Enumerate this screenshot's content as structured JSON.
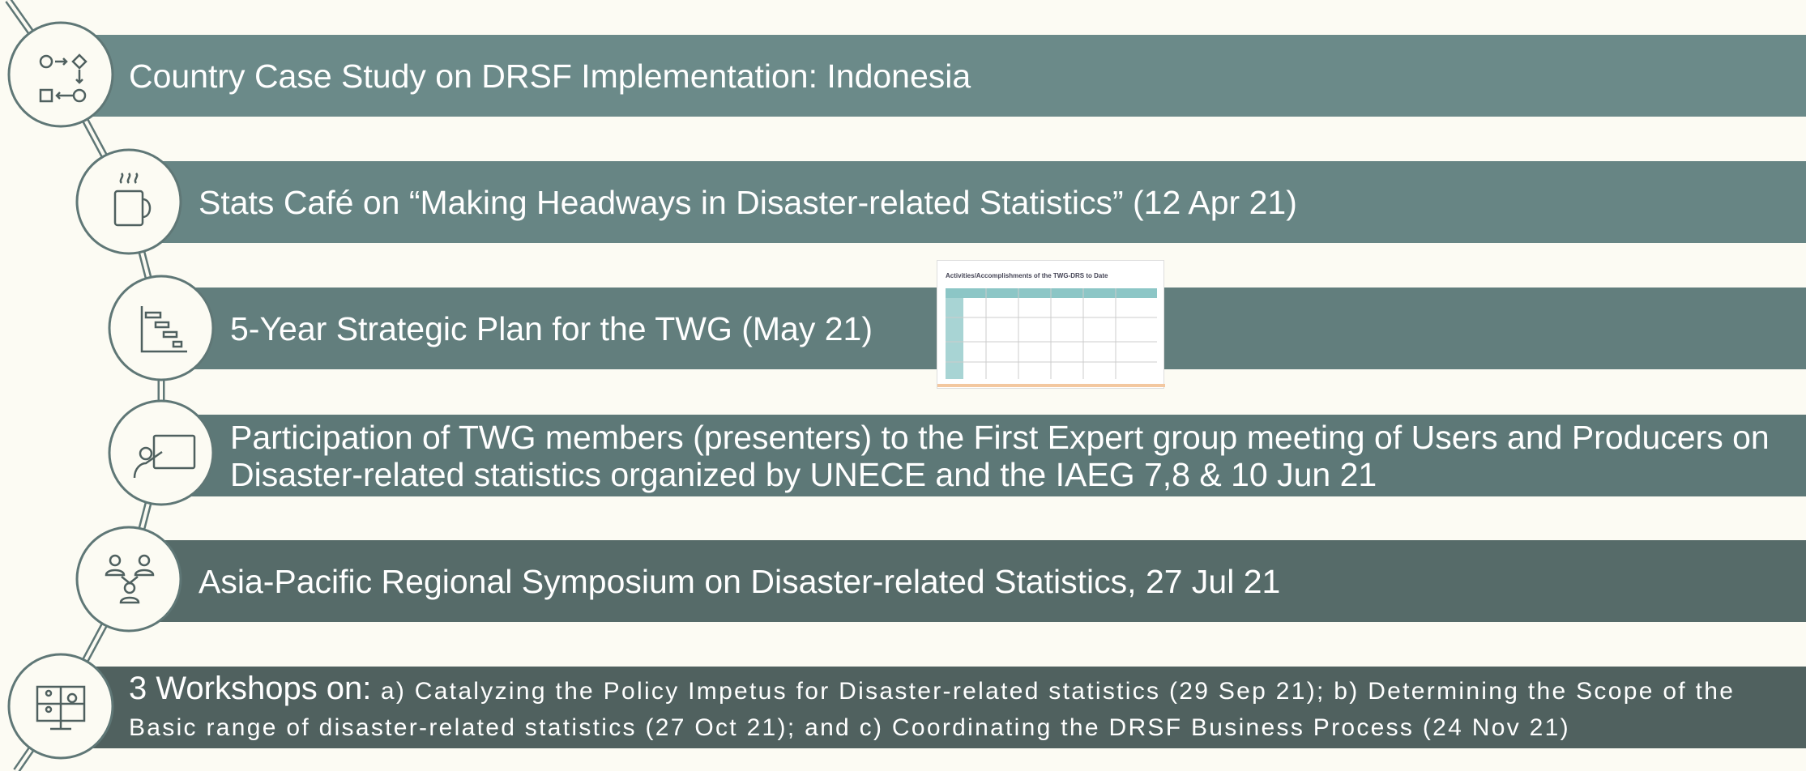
{
  "items": [
    {
      "text": "Country Case Study on DRSF Implementation: Indonesia"
    },
    {
      "text": "Stats Café on “Making Headways in Disaster-related Statistics” (12 Apr 21)"
    },
    {
      "text": "5-Year Strategic Plan for the TWG (May 21)"
    },
    {
      "text": "Participation of TWG members (presenters) to the First Expert group meeting of Users and Producers on Disaster-related statistics organized by UNECE and the IAEG 7,8 & 10 Jun 21"
    },
    {
      "text": "Asia-Pacific Regional Symposium on Disaster-related Statistics, 27 Jul 21"
    },
    {
      "lead": "3 Workshops on:",
      "detail": "a) Catalyzing the Policy Impetus for Disaster-related statistics (29 Sep 21); b) Determining the Scope of the Basic range of disaster-related statistics (27 Oct 21); and c) Coordinating the DRSF Business Process (24 Nov 21)"
    }
  ],
  "thumbnail": {
    "title": "Activities/Accomplishments of the TWG-DRS to Date"
  }
}
